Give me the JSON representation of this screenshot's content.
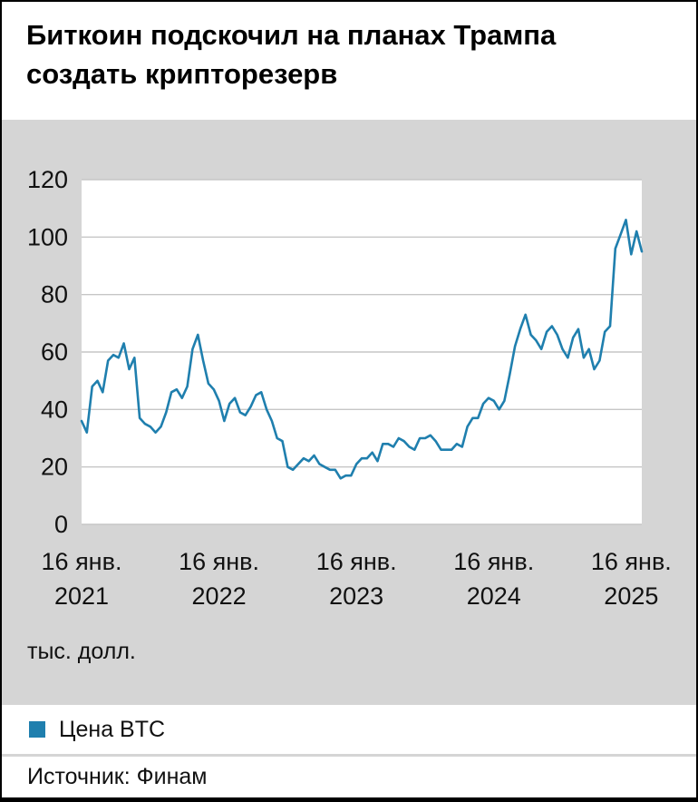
{
  "title": {
    "line1": "Биткоин подскочил на планах Трампа",
    "line2": "создать крипторезерв"
  },
  "chart": {
    "unit_label": "тыс. долл."
  },
  "legend": {
    "swatch_icon": "square-swatch",
    "label": "Цена BTC"
  },
  "source": {
    "label": "Источник: Финам"
  },
  "colors": {
    "accent": "#1f7fae",
    "page_bg": "#d5d5d5",
    "plot_bg": "#ffffff",
    "grid": "#c6c6c6",
    "text": "#111111"
  },
  "chart_data": {
    "type": "line",
    "title": "Биткоин подскочил на планах Трампа создать крипторезерв",
    "ylabel": "тыс. долл.",
    "xlabel": "",
    "ylim": [
      0,
      120
    ],
    "y_ticks": [
      0,
      20,
      40,
      60,
      80,
      100,
      120
    ],
    "grid": "horizontal",
    "legend_position": "bottom",
    "x_tick_labels": [
      [
        "16 янв.",
        "2021"
      ],
      [
        "16 янв.",
        "2022"
      ],
      [
        "16 янв.",
        "2023"
      ],
      [
        "16 янв.",
        "2024"
      ],
      [
        "16 янв.",
        "2025"
      ]
    ],
    "x_tick_indices": [
      0,
      26,
      52,
      78,
      104
    ],
    "x_unit": "биweekly points from 16 Jan 2021",
    "series": [
      {
        "name": "Цена BTC",
        "values": [
          36,
          32,
          48,
          50,
          46,
          57,
          59,
          58,
          63,
          54,
          58,
          37,
          35,
          34,
          32,
          34,
          39,
          46,
          47,
          44,
          48,
          61,
          66,
          57,
          49,
          47,
          43,
          36,
          42,
          44,
          39,
          38,
          41,
          45,
          46,
          40,
          36,
          30,
          29,
          20,
          19,
          21,
          23,
          22,
          24,
          21,
          20,
          19,
          19,
          16,
          17,
          17,
          21,
          23,
          23,
          25,
          22,
          28,
          28,
          27,
          30,
          29,
          27,
          26,
          30,
          30,
          31,
          29,
          26,
          26,
          26,
          28,
          27,
          34,
          37,
          37,
          42,
          44,
          43,
          40,
          43,
          52,
          62,
          68,
          73,
          66,
          64,
          61,
          67,
          69,
          66,
          61,
          58,
          65,
          68,
          58,
          61,
          54,
          57,
          67,
          69,
          96,
          101,
          106,
          94,
          102,
          95
        ]
      }
    ]
  }
}
